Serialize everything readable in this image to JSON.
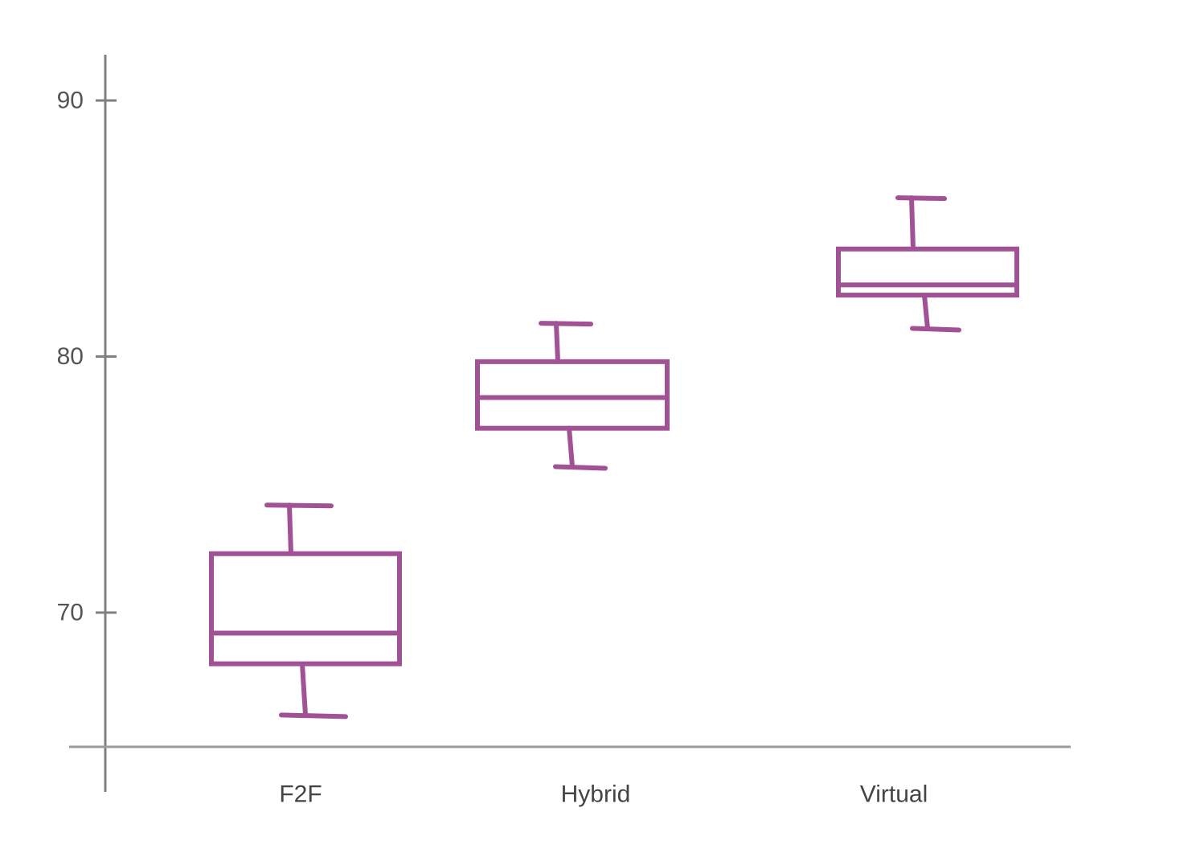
{
  "chart_data": {
    "type": "box",
    "title": "",
    "xlabel": "",
    "ylabel": "",
    "ylim": [
      64.7,
      92.0
    ],
    "y_ticks": [
      70,
      80,
      90
    ],
    "grid": false,
    "categories": [
      "F2F",
      "Hybrid",
      "Virtual"
    ],
    "boxes": [
      {
        "category": "F2F",
        "whisker_low": 66.0,
        "q1": 68.0,
        "median": 69.2,
        "q3": 72.3,
        "whisker_high": 74.2
      },
      {
        "category": "Hybrid",
        "whisker_low": 75.7,
        "q1": 77.2,
        "median": 78.4,
        "q3": 79.8,
        "whisker_high": 81.3
      },
      {
        "category": "Virtual",
        "whisker_low": 81.1,
        "q1": 82.4,
        "median": 82.8,
        "q3": 84.2,
        "whisker_high": 86.2
      }
    ],
    "colors": {
      "box": "#a05295",
      "axis": "#7f7f7f"
    }
  }
}
